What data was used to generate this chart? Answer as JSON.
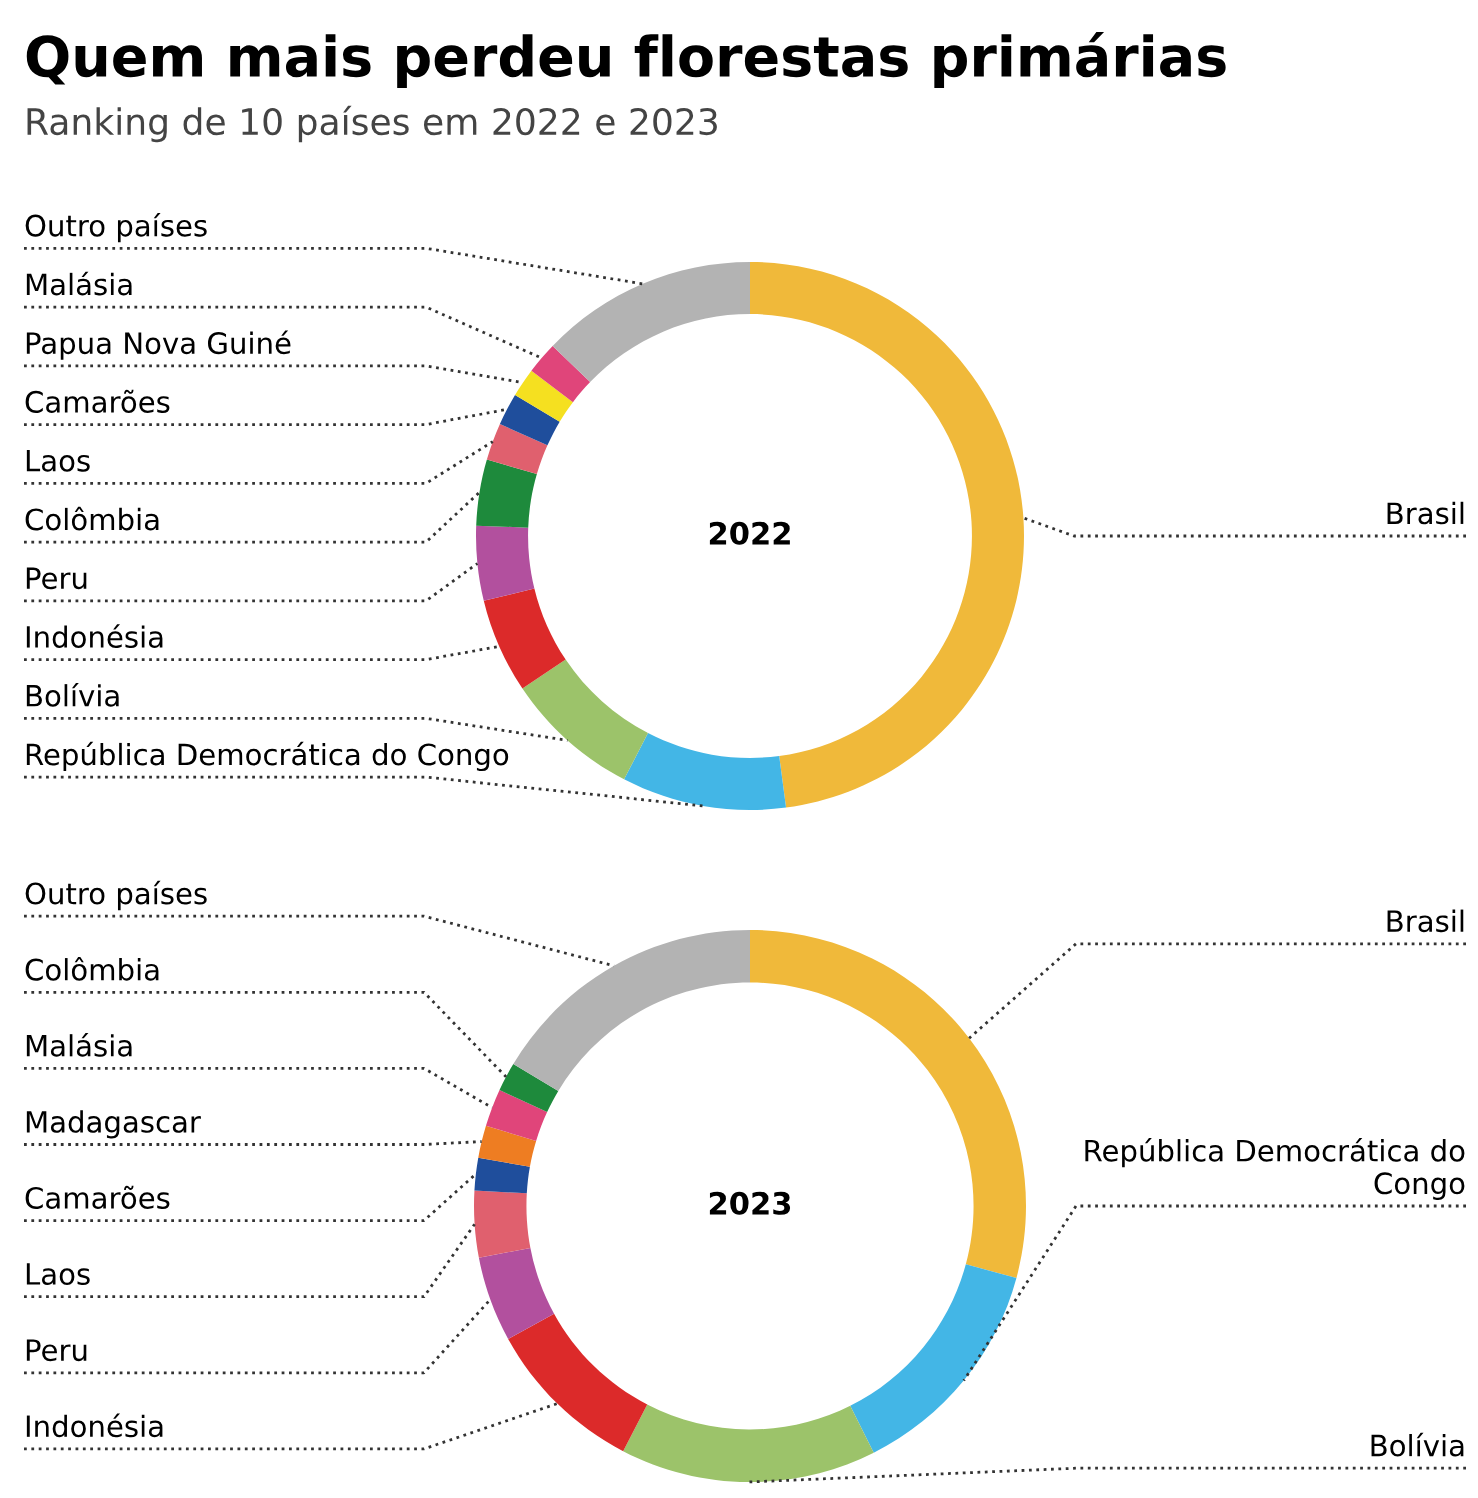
{
  "chart_data": [
    {
      "type": "donut",
      "title": "Quem mais perdeu florestas primárias",
      "subtitle": "Ranking de 10 países em 2022 e 2023",
      "annotations": [
        "2022"
      ],
      "categories": [
        "Brasil",
        "República Democrática do Congo",
        "Bolívia",
        "Indonésia",
        "Peru",
        "Colômbia",
        "Laos",
        "Camarões",
        "Papua Nova Guiné",
        "Malásia",
        "Outro países"
      ],
      "values": [
        47.9,
        9.7,
        8.0,
        5.6,
        4.4,
        3.9,
        2.2,
        1.9,
        1.7,
        1.9,
        12.8
      ],
      "colors": [
        "#f0b93a",
        "#43b6e6",
        "#9cc36a",
        "#dc2a2a",
        "#b2509e",
        "#1e8a3c",
        "#e0606e",
        "#1f4e9c",
        "#f5e020",
        "#e0457a",
        "#b3b3b3"
      ]
    },
    {
      "type": "donut",
      "annotations": [
        "2023"
      ],
      "categories": [
        "Brasil",
        "República Democrática do\nCongo",
        "Bolívia",
        "Indonésia",
        "Peru",
        "Laos",
        "Camarões",
        "Madagascar",
        "Malásia",
        "Colômbia",
        "Outro países"
      ],
      "values": [
        29.2,
        13.4,
        15.0,
        9.4,
        5.0,
        3.9,
        1.9,
        1.9,
        2.2,
        1.7,
        16.4
      ],
      "colors": [
        "#f0b93a",
        "#43b6e6",
        "#9cc36a",
        "#dc2a2a",
        "#b2509e",
        "#e0606e",
        "#1f4e9c",
        "#ee7d22",
        "#e0457a",
        "#1e8a3c",
        "#b3b3b3"
      ]
    }
  ]
}
